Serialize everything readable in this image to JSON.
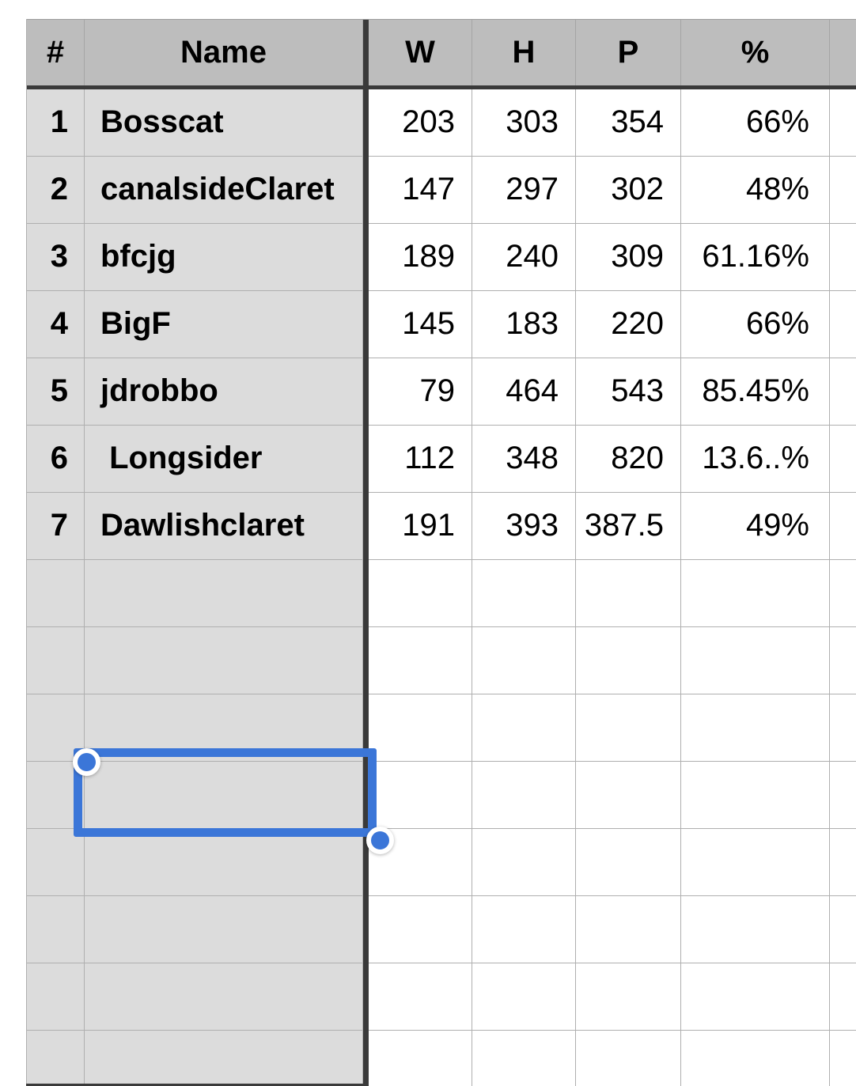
{
  "table": {
    "columns": [
      {
        "key": "num",
        "label": "#"
      },
      {
        "key": "name",
        "label": "Name"
      },
      {
        "key": "w",
        "label": "W"
      },
      {
        "key": "h",
        "label": "H"
      },
      {
        "key": "p",
        "label": "P"
      },
      {
        "key": "pct",
        "label": "%"
      },
      {
        "key": "extra",
        "label": ""
      }
    ],
    "rows": [
      {
        "num": "1",
        "name": "Bosscat",
        "w": "203",
        "h": "303",
        "p": "354",
        "pct": "66%"
      },
      {
        "num": "2",
        "name": "canalsideClaret",
        "w": "147",
        "h": "297",
        "p": "302",
        "pct": "48%"
      },
      {
        "num": "3",
        "name": "bfcjg",
        "w": "189",
        "h": "240",
        "p": "309",
        "pct": "61.16%"
      },
      {
        "num": "4",
        "name": "BigF",
        "w": "145",
        "h": "183",
        "p": "220",
        "pct": "66%"
      },
      {
        "num": "5",
        "name": "jdrobbo",
        "w": "79",
        "h": "464",
        "p": "543",
        "pct": "85.45%"
      },
      {
        "num": "6",
        "name": " Longsider",
        "w": "112",
        "h": "348",
        "p": "820",
        "pct": "13.6..%"
      },
      {
        "num": "7",
        "name": "Dawlishclaret",
        "w": "191",
        "h": "393",
        "p": "387.5",
        "pct": "49%"
      }
    ]
  },
  "selection": {
    "row": 11,
    "column": "Name",
    "value": ""
  },
  "colors": {
    "accent": "#3b76d8",
    "divider": "#3a3a3a",
    "header_bg": "#bdbdbd",
    "frozen_bg": "#dcdcdc",
    "gridline": "#afafaf"
  }
}
